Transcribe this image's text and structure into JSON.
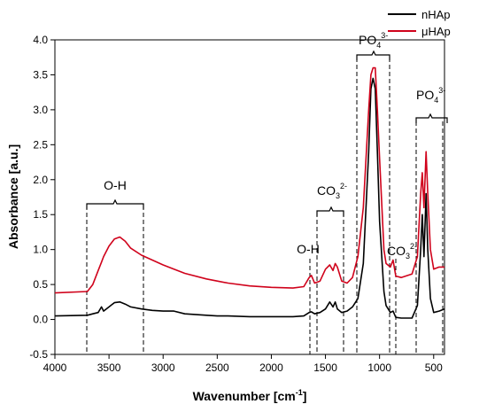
{
  "chart_data": {
    "type": "line",
    "xlabel": {
      "text": "Wavenumber [cm",
      "sup": "-1",
      "tail": "]"
    },
    "ylabel": "Absorbance [a.u.]",
    "x": [
      4000,
      3700,
      3650,
      3600,
      3570,
      3550,
      3500,
      3450,
      3400,
      3350,
      3300,
      3200,
      3100,
      3000,
      2900,
      2800,
      2600,
      2500,
      2400,
      2200,
      2000,
      1800,
      1700,
      1650,
      1630,
      1600,
      1550,
      1500,
      1460,
      1430,
      1410,
      1390,
      1350,
      1300,
      1250,
      1200,
      1150,
      1100,
      1080,
      1060,
      1040,
      1020,
      1000,
      960,
      940,
      900,
      875,
      850,
      800,
      700,
      650,
      620,
      605,
      590,
      570,
      555,
      530,
      500,
      450,
      400
    ],
    "series": [
      {
        "name": "nHAp",
        "color": "#000000",
        "values": [
          0.05,
          0.06,
          0.08,
          0.1,
          0.18,
          0.12,
          0.18,
          0.24,
          0.25,
          0.22,
          0.18,
          0.15,
          0.13,
          0.12,
          0.12,
          0.08,
          0.06,
          0.05,
          0.05,
          0.04,
          0.04,
          0.04,
          0.05,
          0.1,
          0.11,
          0.08,
          0.1,
          0.15,
          0.25,
          0.18,
          0.25,
          0.15,
          0.1,
          0.12,
          0.18,
          0.3,
          0.8,
          2.4,
          3.3,
          3.45,
          3.3,
          2.4,
          1.4,
          0.4,
          0.2,
          0.1,
          0.12,
          0.03,
          0.02,
          0.02,
          0.2,
          1.0,
          1.5,
          0.9,
          1.8,
          1.0,
          0.3,
          0.1,
          0.12,
          0.15
        ]
      },
      {
        "name": "μHAp",
        "color": "#d0021b",
        "values": [
          0.38,
          0.4,
          0.5,
          0.7,
          0.82,
          0.9,
          1.05,
          1.15,
          1.18,
          1.12,
          1.02,
          0.92,
          0.85,
          0.78,
          0.72,
          0.66,
          0.58,
          0.55,
          0.52,
          0.48,
          0.46,
          0.45,
          0.47,
          0.6,
          0.63,
          0.52,
          0.55,
          0.72,
          0.78,
          0.7,
          0.8,
          0.75,
          0.55,
          0.52,
          0.6,
          0.9,
          1.6,
          3.0,
          3.5,
          3.6,
          3.6,
          3.0,
          2.3,
          1.0,
          0.8,
          0.75,
          0.85,
          0.62,
          0.6,
          0.65,
          0.9,
          1.8,
          2.1,
          1.6,
          2.4,
          1.8,
          1.0,
          0.72,
          0.75,
          0.75
        ]
      }
    ],
    "xlim": [
      4000,
      400
    ],
    "xticks": [
      4000,
      3500,
      3000,
      2500,
      2000,
      1500,
      1000,
      500
    ],
    "ylim": [
      -0.5,
      4.0
    ],
    "yticks": [
      -0.5,
      {
        "value": 0,
        "label": "0.0"
      },
      0.5,
      {
        "value": 1,
        "label": "1.0"
      },
      1.5,
      {
        "value": 2,
        "label": "2.0"
      },
      2.5,
      {
        "value": 3,
        "label": "3.0"
      },
      3.5,
      {
        "value": 4,
        "label": "4.0"
      }
    ],
    "legend": "top-right",
    "annotations": [
      {
        "text": "O-H"
      },
      {
        "text": "CO",
        "sub": "3",
        "sup": "2-"
      },
      {
        "text": "O-H"
      },
      {
        "text": "PO",
        "sub": "4",
        "sup": "3-"
      },
      {
        "text": "CO",
        "sub": "3",
        "sup": "2-"
      },
      {
        "text": "PO",
        "sub": "4",
        "sup": "3-"
      }
    ]
  }
}
